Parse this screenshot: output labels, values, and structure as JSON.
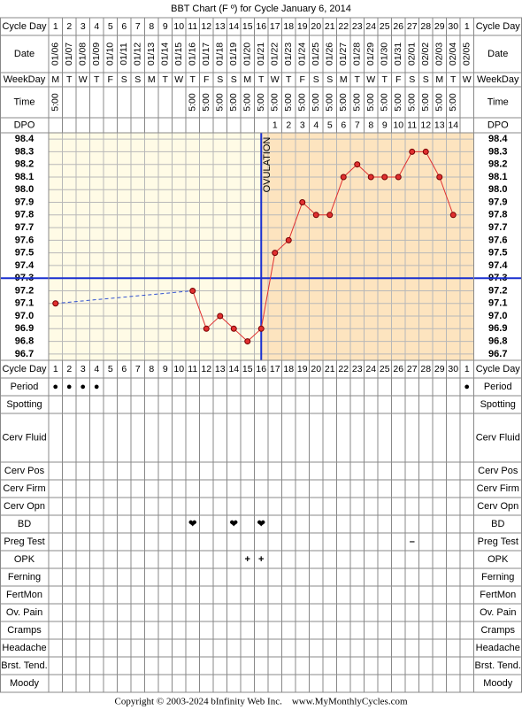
{
  "chart_data": {
    "type": "line",
    "title": "BBT Chart (F º) for Cycle January 6, 2014",
    "row_labels": {
      "cycle_day": "Cycle Day",
      "date": "Date",
      "weekday": "WeekDay",
      "time": "Time",
      "dpo": "DPO"
    },
    "cycle_days": [
      1,
      2,
      3,
      4,
      5,
      6,
      7,
      8,
      9,
      10,
      11,
      12,
      13,
      14,
      15,
      16,
      17,
      18,
      19,
      20,
      21,
      22,
      23,
      24,
      25,
      26,
      27,
      28,
      29,
      30,
      1
    ],
    "dates": [
      "01/06",
      "01/07",
      "01/08",
      "01/09",
      "01/10",
      "01/11",
      "01/12",
      "01/13",
      "01/14",
      "01/15",
      "01/16",
      "01/17",
      "01/18",
      "01/19",
      "01/20",
      "01/21",
      "01/22",
      "01/23",
      "01/24",
      "01/25",
      "01/26",
      "01/27",
      "01/28",
      "01/29",
      "01/30",
      "01/31",
      "02/01",
      "02/02",
      "02/03",
      "02/04",
      "02/05"
    ],
    "weekdays": [
      "M",
      "T",
      "W",
      "T",
      "F",
      "S",
      "S",
      "M",
      "T",
      "W",
      "T",
      "F",
      "S",
      "S",
      "M",
      "T",
      "W",
      "T",
      "F",
      "S",
      "S",
      "M",
      "T",
      "W",
      "T",
      "F",
      "S",
      "S",
      "M",
      "T",
      "W"
    ],
    "times": [
      "5:00",
      null,
      null,
      null,
      null,
      null,
      null,
      null,
      null,
      null,
      "5:00",
      "5:00",
      "5:00",
      "5:00",
      "5:00",
      "5:00",
      "5:00",
      "5:00",
      "5:00",
      "5:00",
      "5:00",
      "5:00",
      "5:00",
      "5:00",
      "5:00",
      "5:00",
      "5:00",
      "5:00",
      "5:00",
      "5:00",
      null
    ],
    "dpo": [
      null,
      null,
      null,
      null,
      null,
      null,
      null,
      null,
      null,
      null,
      null,
      null,
      null,
      null,
      null,
      null,
      1,
      2,
      3,
      4,
      5,
      6,
      7,
      8,
      9,
      10,
      11,
      12,
      13,
      14,
      null
    ],
    "values": [
      97.1,
      null,
      null,
      null,
      null,
      null,
      null,
      null,
      null,
      null,
      97.2,
      96.9,
      97.0,
      96.9,
      96.8,
      96.9,
      97.5,
      97.6,
      97.9,
      97.8,
      97.8,
      98.1,
      98.2,
      98.1,
      98.1,
      98.1,
      98.3,
      98.3,
      98.1,
      97.8,
      null
    ],
    "color": "#e03030",
    "ylim": [
      96.65,
      98.45
    ],
    "yticks": [
      98.4,
      98.3,
      98.2,
      98.1,
      {
        "value": 98,
        "label": "98.0"
      },
      97.9,
      97.8,
      97.7,
      97.6,
      97.5,
      97.4,
      97.3,
      97.2,
      97.1,
      {
        "value": 97,
        "label": "97.0"
      },
      96.9,
      96.8,
      96.7
    ],
    "coverline": 97.3,
    "ovulation_day": 16,
    "ovulation_label": "OVULATION",
    "fertility_rows": [
      {
        "label": "Period",
        "color": "#e020e0",
        "cells": [
          "●",
          "●",
          "●",
          "●",
          null,
          null,
          null,
          null,
          null,
          null,
          null,
          null,
          null,
          null,
          null,
          null,
          null,
          null,
          null,
          null,
          null,
          null,
          null,
          null,
          null,
          null,
          null,
          null,
          null,
          null,
          "●"
        ]
      },
      {
        "label": "Spotting"
      },
      {
        "label": "Cerv Fluid"
      },
      {
        "label": "Cerv Pos"
      },
      {
        "label": "Cerv Firm"
      },
      {
        "label": "Cerv Opn"
      },
      {
        "label": "BD",
        "color": "#e0407a",
        "cells": [
          null,
          null,
          null,
          null,
          null,
          null,
          null,
          null,
          null,
          null,
          "❤",
          null,
          null,
          "❤",
          null,
          "❤",
          null,
          null,
          null,
          null,
          null,
          null,
          null,
          null,
          null,
          null,
          null,
          null,
          null,
          null,
          null
        ]
      },
      {
        "label": "Preg Test",
        "color": "#8040a0",
        "cells": [
          null,
          null,
          null,
          null,
          null,
          null,
          null,
          null,
          null,
          null,
          null,
          null,
          null,
          null,
          null,
          null,
          null,
          null,
          null,
          null,
          null,
          null,
          null,
          null,
          null,
          null,
          "–",
          null,
          null,
          null,
          null
        ]
      },
      {
        "label": "OPK",
        "color": "#8040a0",
        "cells": [
          null,
          null,
          null,
          null,
          null,
          null,
          null,
          null,
          null,
          null,
          null,
          null,
          null,
          null,
          "+",
          "+",
          null,
          null,
          null,
          null,
          null,
          null,
          null,
          null,
          null,
          null,
          null,
          null,
          null,
          null,
          null
        ]
      },
      {
        "label": "Ferning"
      },
      {
        "label": "FertMon"
      },
      {
        "label": "Ov. Pain"
      },
      {
        "label": "Cramps"
      },
      {
        "label": "Headache"
      },
      {
        "label": "Brst. Tend."
      },
      {
        "label": "Moody"
      }
    ],
    "footer": "Copyright © 2003-2024 bInfinity Web Inc.    www.MyMonthlyCycles.com"
  }
}
